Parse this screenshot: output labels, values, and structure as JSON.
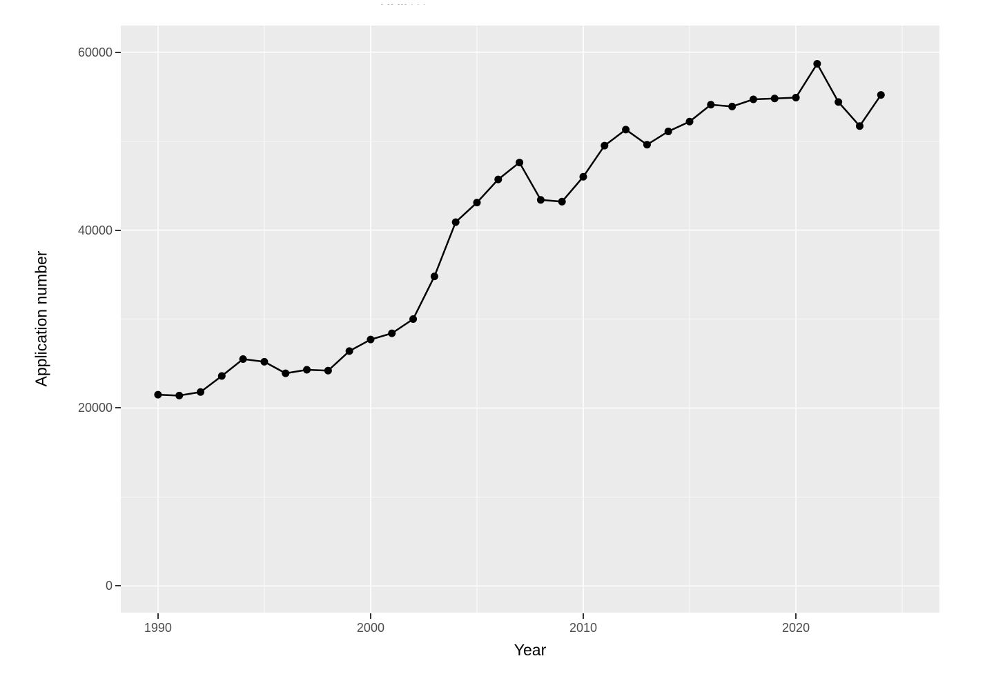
{
  "page": {
    "clipped_title_fragment": "‐ ‐‐ ‐‐‐ ∙ ∙ ∙"
  },
  "chart_data": {
    "type": "line",
    "title": "",
    "xlabel": "Year",
    "ylabel": "Application number",
    "legend": "none",
    "grid": true,
    "x_range": [
      1988.25,
      2026.75
    ],
    "y_range": [
      -3000,
      63000
    ],
    "x_ticks": {
      "major": [
        1990,
        2000,
        2010,
        2020
      ],
      "minor": [
        1995,
        2005,
        2015,
        2025
      ]
    },
    "y_ticks": {
      "major": [
        0,
        20000,
        40000,
        60000
      ],
      "minor": [
        10000,
        30000,
        50000
      ]
    },
    "x_tick_labels": [
      "1990",
      "2000",
      "2010",
      "2020"
    ],
    "y_tick_labels": [
      "0",
      "20000",
      "40000",
      "60000"
    ],
    "series": [
      {
        "name": "applications",
        "x": [
          1990,
          1991,
          1992,
          1993,
          1994,
          1995,
          1996,
          1997,
          1998,
          1999,
          2000,
          2001,
          2002,
          2003,
          2004,
          2005,
          2006,
          2007,
          2008,
          2009,
          2010,
          2011,
          2012,
          2013,
          2014,
          2015,
          2016,
          2017,
          2018,
          2019,
          2020,
          2021,
          2022,
          2023,
          2024
        ],
        "values": [
          21500,
          21400,
          21800,
          23600,
          25500,
          25200,
          23900,
          24300,
          24200,
          26400,
          27700,
          28400,
          30000,
          34800,
          40900,
          43100,
          45700,
          47600,
          43400,
          43200,
          46000,
          49500,
          51300,
          49600,
          51100,
          52200,
          54100,
          53900,
          54700,
          54800,
          54900,
          58700,
          54400,
          51700,
          55200
        ]
      }
    ],
    "style": {
      "panel_bg": "#EBEBEB",
      "grid_color": "#FFFFFF",
      "line_color": "#000000",
      "point_color": "#000000",
      "tick_label_color": "#4D4D4D",
      "axis_title_color": "#000000"
    }
  }
}
